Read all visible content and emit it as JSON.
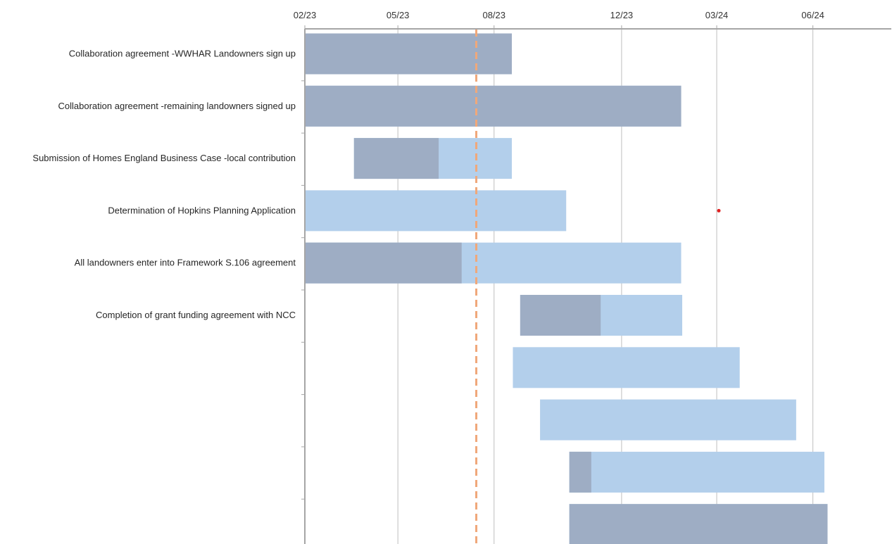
{
  "chart_data": {
    "type": "gantt",
    "title": "",
    "xlabel": "",
    "ylabel": "",
    "x_axis_position": "top",
    "x_ticks": [
      "02/23",
      "05/23",
      "08/23",
      "12/23",
      "03/24",
      "06/24"
    ],
    "x_range": [
      "2023-02-01",
      "2024-08-15"
    ],
    "grid": true,
    "legend": "none",
    "today_marker": "2023-07-15",
    "annotation_point": {
      "date": "2024-03-03",
      "row": 3,
      "color": "#e02020"
    },
    "colors": {
      "complete": "#9eadc4",
      "remaining": "#b3cfeb",
      "today_line": "#f0a87a",
      "grid": "#bfbfbf",
      "axis": "#a6a6a6"
    },
    "tasks": [
      {
        "label": "Collaboration agreement -WWHAR Landowners sign up",
        "start": "2023-02-01",
        "end": "2023-08-18",
        "progress_end": "2023-08-18"
      },
      {
        "label": "Collaboration agreement -remaining landowners signed up",
        "start": "2023-02-01",
        "end": "2024-01-27",
        "progress_end": "2024-01-27"
      },
      {
        "label": "Submission of Homes England Business Case -local contribution",
        "start": "2023-03-20",
        "end": "2023-08-18",
        "progress_end": "2023-06-09"
      },
      {
        "label": "Determination of Hopkins Planning Application",
        "start": "2023-02-01",
        "end": "2023-10-09",
        "progress_end": "2023-02-01"
      },
      {
        "label": "All landowners enter into Framework S.106 agreement",
        "start": "2023-02-01",
        "end": "2024-01-27",
        "progress_end": "2023-07-01"
      },
      {
        "label": "Completion of grant funding agreement with NCC",
        "start": "2023-08-26",
        "end": "2024-01-28",
        "progress_end": "2023-11-11"
      },
      {
        "label": "",
        "start": "2023-08-19",
        "end": "2024-03-23",
        "progress_end": "2023-08-19"
      },
      {
        "label": "",
        "start": "2023-09-14",
        "end": "2024-05-16",
        "progress_end": "2023-09-14"
      },
      {
        "label": "",
        "start": "2023-10-12",
        "end": "2024-06-12",
        "progress_end": "2023-11-02"
      },
      {
        "label": "",
        "start": "2023-10-12",
        "end": "2024-06-15",
        "progress_end": "2024-06-15"
      }
    ]
  }
}
